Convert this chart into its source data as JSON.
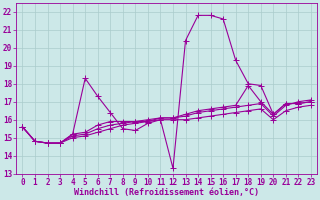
{
  "xlabel": "Windchill (Refroidissement éolien,°C)",
  "background_color": "#cce8e8",
  "grid_color": "#aacccc",
  "line_color": "#990099",
  "xlim": [
    -0.5,
    23.5
  ],
  "ylim": [
    13,
    22.5
  ],
  "xticks": [
    0,
    1,
    2,
    3,
    4,
    5,
    6,
    7,
    8,
    9,
    10,
    11,
    12,
    13,
    14,
    15,
    16,
    17,
    18,
    19,
    20,
    21,
    22,
    23
  ],
  "yticks": [
    13,
    14,
    15,
    16,
    17,
    18,
    19,
    20,
    21,
    22
  ],
  "series": [
    [
      15.6,
      14.8,
      14.7,
      14.7,
      15.2,
      18.3,
      17.3,
      16.4,
      15.5,
      15.4,
      15.8,
      16.0,
      13.3,
      20.4,
      21.8,
      21.8,
      21.6,
      19.3,
      18.0,
      17.9,
      16.3,
      16.9,
      16.9,
      17.0
    ],
    [
      15.6,
      14.8,
      14.7,
      14.7,
      15.2,
      15.3,
      15.7,
      15.9,
      15.9,
      15.9,
      16.0,
      16.1,
      16.1,
      16.3,
      16.5,
      16.6,
      16.7,
      16.8,
      17.9,
      17.0,
      16.3,
      16.9,
      16.9,
      17.0
    ],
    [
      15.6,
      14.8,
      14.7,
      14.7,
      15.1,
      15.2,
      15.5,
      15.7,
      15.8,
      15.9,
      15.9,
      16.1,
      16.1,
      16.2,
      16.4,
      16.5,
      16.6,
      16.7,
      16.8,
      16.9,
      16.2,
      16.8,
      17.0,
      17.1
    ],
    [
      15.6,
      14.8,
      14.7,
      14.7,
      15.0,
      15.1,
      15.3,
      15.5,
      15.7,
      15.8,
      15.9,
      16.0,
      16.0,
      16.0,
      16.1,
      16.2,
      16.3,
      16.4,
      16.5,
      16.6,
      16.0,
      16.5,
      16.7,
      16.8
    ]
  ],
  "marker": "+",
  "markersize": 4,
  "linewidth": 0.8,
  "xlabel_fontsize": 6,
  "tick_fontsize": 5.5
}
